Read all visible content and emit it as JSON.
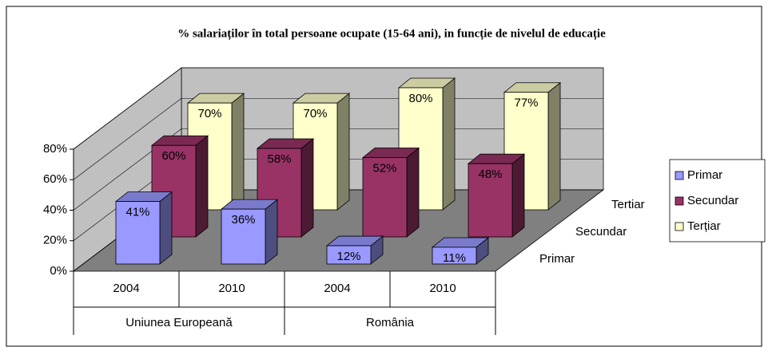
{
  "chart_data": {
    "type": "bar3d",
    "title": "% salariaților în total persoane ocupate (15-64 ani), in funcție de nivelul de educație",
    "categories": [
      "2004",
      "2010",
      "2004",
      "2010"
    ],
    "category_groups": [
      "Uniunea Europeană",
      "România"
    ],
    "depth_labels": [
      "Primar",
      "Secundar",
      "Tertiar"
    ],
    "series": [
      {
        "name": "Primar",
        "color": "#9999ff",
        "values": [
          41,
          36,
          12,
          11
        ],
        "value_labels": [
          "41%",
          "36%",
          "12%",
          "11%"
        ]
      },
      {
        "name": "Secundar",
        "color": "#993366",
        "values": [
          60,
          58,
          52,
          48
        ],
        "value_labels": [
          "60%",
          "58%",
          "52%",
          "48%"
        ]
      },
      {
        "name": "Terțiar",
        "color": "#ffffcc",
        "values": [
          70,
          70,
          80,
          77
        ],
        "value_labels": [
          "70%",
          "70%",
          "80%",
          "77%"
        ]
      }
    ],
    "ylim": [
      0,
      80
    ],
    "yticks": [
      {
        "value": 0,
        "label": "0%"
      },
      {
        "value": 20,
        "label": "20%"
      },
      {
        "value": 40,
        "label": "40%"
      },
      {
        "value": 60,
        "label": "60%"
      },
      {
        "value": 80,
        "label": "80%"
      }
    ],
    "grid": true,
    "legend": "right"
  }
}
